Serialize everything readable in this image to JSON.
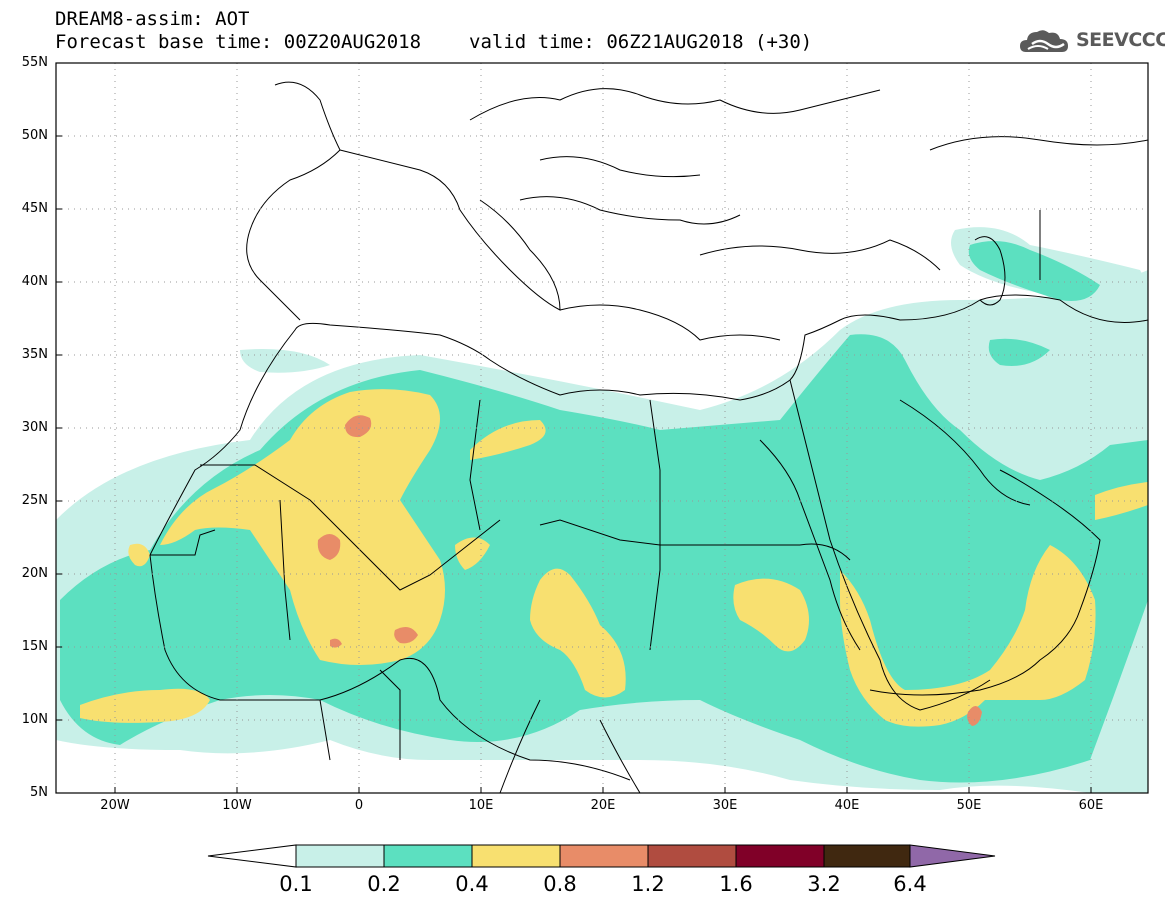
{
  "title": {
    "line1": "DREAM8-assim: AOT",
    "base_time": "Forecast base time: 00Z20AUG2018",
    "valid_time": "valid time: 06Z21AUG2018 (+30)"
  },
  "logo": {
    "text": "SEEVCCC",
    "icon": "cloud-logo-icon"
  },
  "map": {
    "lon_range": [
      -25,
      65
    ],
    "lat_range": [
      5,
      55
    ],
    "lat_ticks": [
      "55N",
      "50N",
      "45N",
      "40N",
      "35N",
      "30N",
      "25N",
      "20N",
      "15N",
      "10N",
      "5N"
    ],
    "lon_ticks": [
      "20W",
      "10W",
      "0",
      "10E",
      "20E",
      "30E",
      "40E",
      "50E",
      "60E"
    ],
    "gridlines": "dotted"
  },
  "colorbar": {
    "labels": [
      "0.1",
      "0.2",
      "0.4",
      "0.8",
      "1.2",
      "1.6",
      "3.2",
      "6.4"
    ],
    "colors": [
      "#c8f0e8",
      "#5ce0c0",
      "#f8e070",
      "#e88c68",
      "#b04c40",
      "#800028",
      "#402810"
    ],
    "under_color": "#ffffff",
    "over_color": "#9068a8"
  },
  "colors": {
    "c1": "#c8f0e8",
    "c2": "#5ce0c0",
    "c3": "#f8e070",
    "c4": "#e88c68"
  }
}
